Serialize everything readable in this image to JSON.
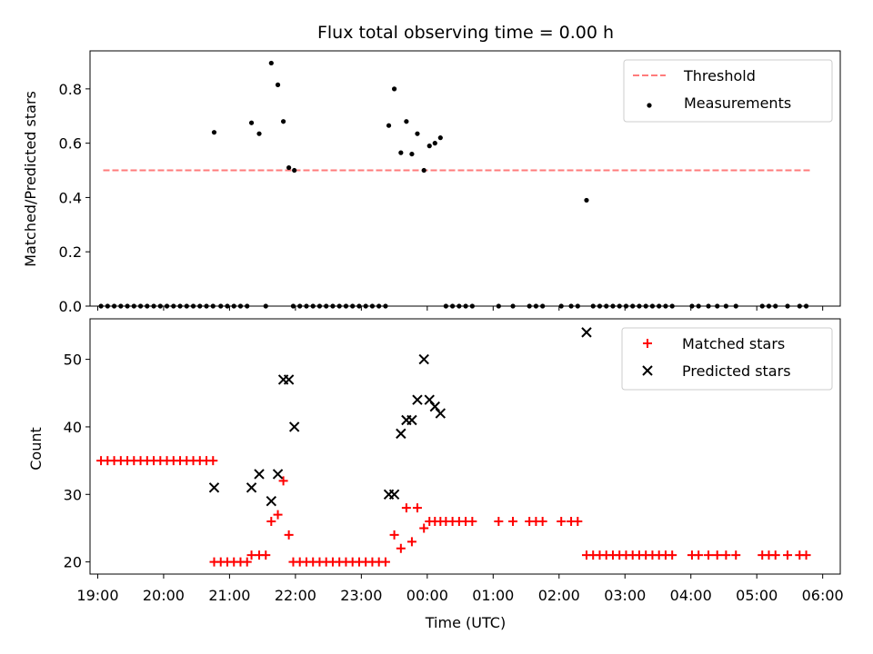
{
  "chart_data": [
    {
      "type": "scatter",
      "title": "Flux total observing time = 0.00 h",
      "ylabel": "Matched/Predicted stars",
      "xlabel": "",
      "xlim": [
        "18:53",
        "06:16"
      ],
      "ylim": [
        0,
        0.94
      ],
      "xticks": [
        "19:00",
        "20:00",
        "21:00",
        "22:00",
        "23:00",
        "00:00",
        "01:00",
        "02:00",
        "03:00",
        "04:00",
        "05:00",
        "06:00"
      ],
      "yticks": [
        "0.0",
        "0.2",
        "0.4",
        "0.6",
        "0.8"
      ],
      "legend": {
        "position": "top-right",
        "entries": [
          "Threshold",
          "Measurements"
        ]
      },
      "series": [
        {
          "name": "Threshold",
          "kind": "dashed-line",
          "color": "#ff7b7b",
          "x": [
            "19:05",
            "05:49"
          ],
          "y": [
            0.5,
            0.5
          ]
        },
        {
          "name": "Measurements",
          "kind": "dot",
          "color": "#000000",
          "points": [
            [
              "20:46",
              0.64
            ],
            [
              "21:20",
              0.675
            ],
            [
              "21:27",
              0.635
            ],
            [
              "21:38",
              0.895
            ],
            [
              "21:44",
              0.815
            ],
            [
              "21:49",
              0.68
            ],
            [
              "21:54",
              0.51
            ],
            [
              "21:59",
              0.5
            ],
            [
              "23:25",
              0.665
            ],
            [
              "23:30",
              0.8
            ],
            [
              "23:36",
              0.565
            ],
            [
              "23:41",
              0.68
            ],
            [
              "23:46",
              0.56
            ],
            [
              "23:51",
              0.635
            ],
            [
              "23:57",
              0.5
            ],
            [
              "00:02",
              0.59
            ],
            [
              "00:07",
              0.6
            ],
            [
              "00:12",
              0.62
            ],
            [
              "02:25",
              0.39
            ],
            [
              "19:03",
              0
            ],
            [
              "19:09",
              0
            ],
            [
              "19:15",
              0
            ],
            [
              "19:21",
              0
            ],
            [
              "19:27",
              0
            ],
            [
              "19:33",
              0
            ],
            [
              "19:39",
              0
            ],
            [
              "19:45",
              0
            ],
            [
              "19:51",
              0
            ],
            [
              "19:57",
              0
            ],
            [
              "20:03",
              0
            ],
            [
              "20:09",
              0
            ],
            [
              "20:15",
              0
            ],
            [
              "20:21",
              0
            ],
            [
              "20:27",
              0
            ],
            [
              "20:33",
              0
            ],
            [
              "20:39",
              0
            ],
            [
              "20:45",
              0
            ],
            [
              "20:52",
              0
            ],
            [
              "20:58",
              0
            ],
            [
              "21:04",
              0
            ],
            [
              "21:10",
              0
            ],
            [
              "21:16",
              0
            ],
            [
              "21:33",
              0
            ],
            [
              "21:58",
              0
            ],
            [
              "22:04",
              0
            ],
            [
              "22:10",
              0
            ],
            [
              "22:16",
              0
            ],
            [
              "22:22",
              0
            ],
            [
              "22:28",
              0
            ],
            [
              "22:34",
              0
            ],
            [
              "22:40",
              0
            ],
            [
              "22:46",
              0
            ],
            [
              "22:52",
              0
            ],
            [
              "22:58",
              0
            ],
            [
              "23:04",
              0
            ],
            [
              "23:10",
              0
            ],
            [
              "23:16",
              0
            ],
            [
              "23:22",
              0
            ],
            [
              "00:17",
              0
            ],
            [
              "00:23",
              0
            ],
            [
              "00:29",
              0
            ],
            [
              "00:35",
              0
            ],
            [
              "00:41",
              0
            ],
            [
              "01:05",
              0
            ],
            [
              "01:18",
              0
            ],
            [
              "01:33",
              0
            ],
            [
              "01:39",
              0
            ],
            [
              "01:45",
              0
            ],
            [
              "02:02",
              0
            ],
            [
              "02:11",
              0
            ],
            [
              "02:17",
              0
            ],
            [
              "02:31",
              0
            ],
            [
              "02:37",
              0
            ],
            [
              "02:43",
              0
            ],
            [
              "02:49",
              0
            ],
            [
              "02:55",
              0
            ],
            [
              "03:01",
              0
            ],
            [
              "03:07",
              0
            ],
            [
              "03:13",
              0
            ],
            [
              "03:19",
              0
            ],
            [
              "03:25",
              0
            ],
            [
              "03:31",
              0
            ],
            [
              "03:37",
              0
            ],
            [
              "03:43",
              0
            ],
            [
              "04:01",
              0
            ],
            [
              "04:07",
              0
            ],
            [
              "04:16",
              0
            ],
            [
              "04:24",
              0
            ],
            [
              "04:32",
              0
            ],
            [
              "04:41",
              0
            ],
            [
              "05:05",
              0
            ],
            [
              "05:11",
              0
            ],
            [
              "05:17",
              0
            ],
            [
              "05:28",
              0
            ],
            [
              "05:39",
              0
            ],
            [
              "05:45",
              0
            ]
          ]
        }
      ]
    },
    {
      "type": "scatter",
      "title": "",
      "ylabel": "Count",
      "xlabel": "Time (UTC)",
      "xlim": [
        "18:53",
        "06:16"
      ],
      "ylim": [
        18.2,
        56
      ],
      "xticks": [
        "19:00",
        "20:00",
        "21:00",
        "22:00",
        "23:00",
        "00:00",
        "01:00",
        "02:00",
        "03:00",
        "04:00",
        "05:00",
        "06:00"
      ],
      "yticks": [
        "20",
        "30",
        "40",
        "50"
      ],
      "legend": {
        "position": "top-right",
        "entries": [
          "Matched stars",
          "Predicted stars"
        ]
      },
      "series": [
        {
          "name": "Matched stars",
          "kind": "plus",
          "color": "#ff0000",
          "points": [
            [
              "19:03",
              35
            ],
            [
              "19:09",
              35
            ],
            [
              "19:15",
              35
            ],
            [
              "19:21",
              35
            ],
            [
              "19:27",
              35
            ],
            [
              "19:33",
              35
            ],
            [
              "19:39",
              35
            ],
            [
              "19:45",
              35
            ],
            [
              "19:51",
              35
            ],
            [
              "19:57",
              35
            ],
            [
              "20:03",
              35
            ],
            [
              "20:09",
              35
            ],
            [
              "20:15",
              35
            ],
            [
              "20:21",
              35
            ],
            [
              "20:27",
              35
            ],
            [
              "20:33",
              35
            ],
            [
              "20:39",
              35
            ],
            [
              "20:45",
              35
            ],
            [
              "20:46",
              20
            ],
            [
              "20:52",
              20
            ],
            [
              "20:58",
              20
            ],
            [
              "21:04",
              20
            ],
            [
              "21:10",
              20
            ],
            [
              "21:16",
              20
            ],
            [
              "21:20",
              21
            ],
            [
              "21:27",
              21
            ],
            [
              "21:33",
              21
            ],
            [
              "21:38",
              26
            ],
            [
              "21:44",
              27
            ],
            [
              "21:49",
              32
            ],
            [
              "21:54",
              24
            ],
            [
              "21:58",
              20
            ],
            [
              "22:04",
              20
            ],
            [
              "22:10",
              20
            ],
            [
              "22:16",
              20
            ],
            [
              "22:22",
              20
            ],
            [
              "22:28",
              20
            ],
            [
              "22:34",
              20
            ],
            [
              "22:40",
              20
            ],
            [
              "22:46",
              20
            ],
            [
              "22:52",
              20
            ],
            [
              "22:58",
              20
            ],
            [
              "23:04",
              20
            ],
            [
              "23:10",
              20
            ],
            [
              "23:16",
              20
            ],
            [
              "23:22",
              20
            ],
            [
              "23:30",
              24
            ],
            [
              "23:36",
              22
            ],
            [
              "23:41",
              28
            ],
            [
              "23:46",
              23
            ],
            [
              "23:51",
              28
            ],
            [
              "23:57",
              25
            ],
            [
              "00:02",
              26
            ],
            [
              "00:07",
              26
            ],
            [
              "00:12",
              26
            ],
            [
              "00:17",
              26
            ],
            [
              "00:23",
              26
            ],
            [
              "00:29",
              26
            ],
            [
              "00:35",
              26
            ],
            [
              "00:41",
              26
            ],
            [
              "01:05",
              26
            ],
            [
              "01:18",
              26
            ],
            [
              "01:33",
              26
            ],
            [
              "01:39",
              26
            ],
            [
              "01:45",
              26
            ],
            [
              "02:02",
              26
            ],
            [
              "02:11",
              26
            ],
            [
              "02:17",
              26
            ],
            [
              "02:25",
              21
            ],
            [
              "02:31",
              21
            ],
            [
              "02:37",
              21
            ],
            [
              "02:43",
              21
            ],
            [
              "02:49",
              21
            ],
            [
              "02:55",
              21
            ],
            [
              "03:01",
              21
            ],
            [
              "03:07",
              21
            ],
            [
              "03:13",
              21
            ],
            [
              "03:19",
              21
            ],
            [
              "03:25",
              21
            ],
            [
              "03:31",
              21
            ],
            [
              "03:37",
              21
            ],
            [
              "03:43",
              21
            ],
            [
              "04:01",
              21
            ],
            [
              "04:07",
              21
            ],
            [
              "04:16",
              21
            ],
            [
              "04:24",
              21
            ],
            [
              "04:32",
              21
            ],
            [
              "04:41",
              21
            ],
            [
              "05:05",
              21
            ],
            [
              "05:11",
              21
            ],
            [
              "05:17",
              21
            ],
            [
              "05:28",
              21
            ],
            [
              "05:39",
              21
            ],
            [
              "05:45",
              21
            ]
          ]
        },
        {
          "name": "Predicted stars",
          "kind": "x",
          "color": "#000000",
          "points": [
            [
              "20:46",
              31
            ],
            [
              "21:20",
              31
            ],
            [
              "21:27",
              33
            ],
            [
              "21:38",
              29
            ],
            [
              "21:44",
              33
            ],
            [
              "21:49",
              47
            ],
            [
              "21:54",
              47
            ],
            [
              "21:59",
              40
            ],
            [
              "23:25",
              30
            ],
            [
              "23:30",
              30
            ],
            [
              "23:36",
              39
            ],
            [
              "23:41",
              41
            ],
            [
              "23:46",
              41
            ],
            [
              "23:51",
              44
            ],
            [
              "23:57",
              50
            ],
            [
              "00:02",
              44
            ],
            [
              "00:07",
              43
            ],
            [
              "00:12",
              42
            ],
            [
              "02:25",
              54
            ]
          ]
        }
      ]
    }
  ]
}
